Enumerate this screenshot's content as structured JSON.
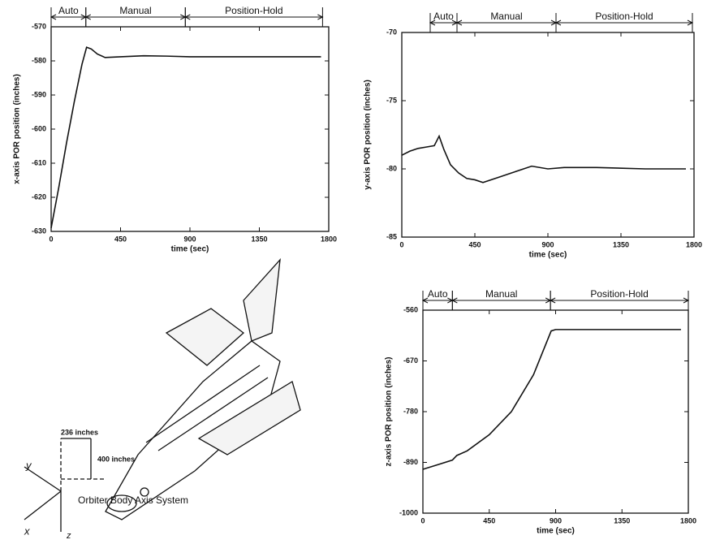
{
  "chart_data": [
    {
      "type": "line",
      "xlabel": "time (sec)",
      "ylabel": "x-axis POR position (inches)",
      "x": [
        0,
        50,
        100,
        150,
        200,
        230,
        260,
        300,
        350,
        450,
        600,
        750,
        900,
        1200,
        1500,
        1750
      ],
      "values": [
        -629,
        -617,
        -604,
        -592,
        -581,
        -576,
        -576.5,
        -578,
        -579,
        -578.8,
        -578.5,
        -578.6,
        -578.8,
        -578.8,
        -578.8,
        -578.8
      ],
      "color": "#111111",
      "xlim": [
        0,
        1800
      ],
      "xticks": [
        0,
        450,
        900,
        1350,
        1800
      ],
      "ylim": [
        -630,
        -570
      ],
      "yticks": [
        -570,
        -580,
        -590,
        -600,
        -610,
        -620,
        -630
      ],
      "phases": [
        {
          "label": "Auto",
          "start": 0,
          "end": 225
        },
        {
          "label": "Manual",
          "start": 225,
          "end": 870
        },
        {
          "label": "Position-Hold",
          "start": 870,
          "end": 1760
        }
      ]
    },
    {
      "type": "line",
      "xlabel": "time (sec)",
      "ylabel": "y-axis POR position (inches)",
      "x": [
        0,
        50,
        100,
        150,
        200,
        230,
        260,
        300,
        350,
        400,
        450,
        500,
        600,
        700,
        800,
        900,
        1000,
        1200,
        1500,
        1750
      ],
      "values": [
        -79,
        -78.7,
        -78.5,
        -78.4,
        -78.3,
        -77.6,
        -78.6,
        -79.7,
        -80.3,
        -80.7,
        -80.8,
        -81,
        -80.6,
        -80.2,
        -79.8,
        -80,
        -79.9,
        -79.9,
        -80,
        -80
      ],
      "color": "#111111",
      "xlim": [
        0,
        1800
      ],
      "xticks": [
        0,
        450,
        900,
        1350,
        1800
      ],
      "ylim": [
        -85,
        -70
      ],
      "yticks": [
        -70,
        -75,
        -80,
        -85
      ],
      "phases": [
        {
          "label": "Auto",
          "start": 175,
          "end": 340
        },
        {
          "label": "Manual",
          "start": 340,
          "end": 950
        },
        {
          "label": "Position-Hold",
          "start": 950,
          "end": 1790
        }
      ]
    },
    {
      "type": "line",
      "xlabel": "time (sec)",
      "ylabel": "z-axis POR position (inches)",
      "x": [
        0,
        100,
        200,
        230,
        300,
        450,
        600,
        750,
        870,
        900,
        1200,
        1500,
        1750
      ],
      "values": [
        -905,
        -895,
        -885,
        -875,
        -865,
        -830,
        -780,
        -700,
        -605,
        -602,
        -602,
        -602,
        -602
      ],
      "color": "#111111",
      "xlim": [
        0,
        1800
      ],
      "xticks": [
        0,
        450,
        900,
        1350,
        1800
      ],
      "ylim": [
        -1000,
        -560
      ],
      "yticks": [
        -560,
        -670,
        -780,
        -890,
        -1000
      ],
      "phases": [
        {
          "label": "Auto",
          "start": 0,
          "end": 200
        },
        {
          "label": "Manual",
          "start": 200,
          "end": 865
        },
        {
          "label": "Position-Hold",
          "start": 865,
          "end": 1800
        }
      ]
    }
  ],
  "diagram": {
    "dim1": "236 inches",
    "dim2": "400 inches",
    "axis_x": "x",
    "axis_y": "y",
    "axis_z": "z",
    "caption": "Orbiter Body Axis System"
  }
}
